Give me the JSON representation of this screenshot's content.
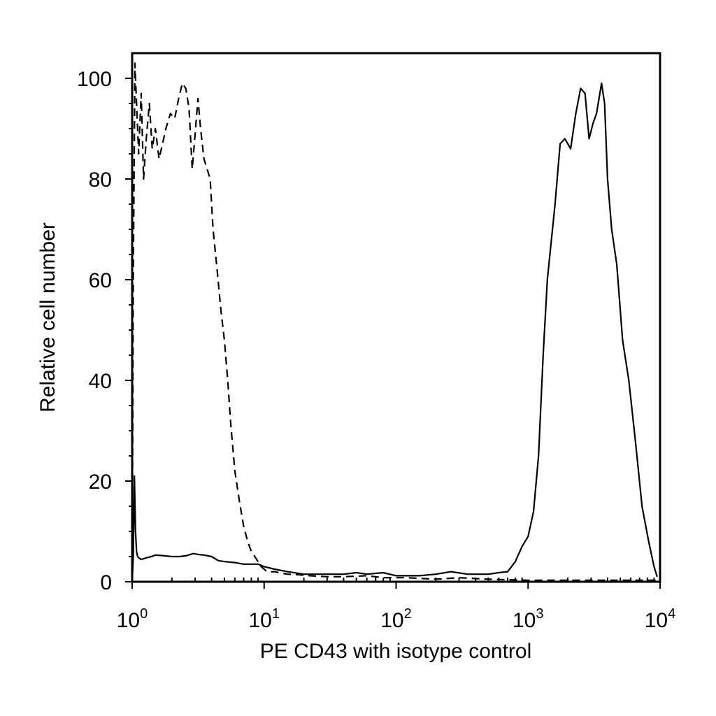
{
  "chart_data": {
    "type": "line",
    "title": "",
    "xlabel": "PE CD43 with isotype control",
    "ylabel": "Relative cell number",
    "xscale": "log",
    "xlim": [
      1,
      10000
    ],
    "ylim": [
      0,
      105
    ],
    "x_ticks": [
      {
        "base": "10",
        "exp": "0",
        "value": 1
      },
      {
        "base": "10",
        "exp": "1",
        "value": 10
      },
      {
        "base": "10",
        "exp": "2",
        "value": 100
      },
      {
        "base": "10",
        "exp": "3",
        "value": 1000
      },
      {
        "base": "10",
        "exp": "4",
        "value": 10000
      }
    ],
    "y_ticks": [
      {
        "label": "0",
        "value": 0
      },
      {
        "label": "20",
        "value": 20
      },
      {
        "label": "40",
        "value": 40
      },
      {
        "label": "60",
        "value": 60
      },
      {
        "label": "80",
        "value": 80
      },
      {
        "label": "100",
        "value": 100
      }
    ],
    "grid": false,
    "legend": "none",
    "series": [
      {
        "style": "dashed",
        "color": "#000000",
        "x": [
          1.0,
          1.02,
          1.05,
          1.08,
          1.12,
          1.17,
          1.22,
          1.28,
          1.35,
          1.42,
          1.5,
          1.6,
          1.7,
          1.8,
          1.95,
          2.1,
          2.25,
          2.4,
          2.55,
          2.7,
          2.85,
          3.0,
          3.15,
          3.3,
          3.5,
          3.7,
          3.9,
          4.1,
          4.4,
          4.7,
          5.0,
          5.3,
          5.6,
          6.0,
          6.5,
          7.0,
          7.5,
          8.0,
          8.5,
          9.0,
          9.5,
          10.0,
          10.5,
          11.0,
          12.0,
          13.0,
          15.0,
          18.0,
          22.0,
          30.0,
          40.0,
          60.0,
          80.0,
          120.0,
          200.0,
          300.0,
          500.0,
          1000.0,
          2000.0,
          4000.0,
          7000.0,
          9500.0
        ],
        "y": [
          0,
          60,
          103,
          95,
          85,
          97,
          80,
          88,
          95,
          86,
          90,
          84,
          87,
          90,
          93,
          92,
          96,
          99,
          98,
          94,
          82,
          89,
          96,
          90,
          84,
          82,
          80,
          70,
          62,
          54,
          48,
          40,
          31,
          22,
          16,
          11,
          8,
          6,
          5,
          4,
          3,
          2.5,
          2,
          2,
          2,
          1.8,
          1.5,
          1.4,
          1.2,
          1,
          1,
          1.2,
          0.8,
          0.8,
          0.5,
          0.8,
          0.5,
          0.3,
          0.3,
          0.3,
          0.3,
          0.3
        ]
      },
      {
        "style": "solid",
        "color": "#000000",
        "x": [
          1.0,
          1.02,
          1.04,
          1.06,
          1.08,
          1.1,
          1.15,
          1.2,
          1.3,
          1.4,
          1.5,
          1.7,
          2.0,
          2.3,
          2.6,
          2.9,
          3.2,
          3.5,
          4.0,
          4.5,
          5.0,
          6.0,
          7.0,
          8.0,
          9.0,
          10.0,
          12.0,
          15.0,
          20.0,
          30.0,
          40.0,
          50.0,
          60.0,
          80.0,
          100.0,
          150.0,
          200.0,
          260.0,
          350.0,
          500.0,
          600.0,
          700.0,
          800.0,
          900.0,
          1000.0,
          1100.0,
          1200.0,
          1300.0,
          1400.0,
          1600.0,
          1750.0,
          1900.0,
          2100.0,
          2300.0,
          2500.0,
          2700.0,
          2900.0,
          3100.0,
          3300.0,
          3600.0,
          3800.0,
          4000.0,
          4300.0,
          4700.0,
          5200.0,
          5800.0,
          6500.0,
          7300.0,
          8200.0,
          9000.0,
          9500.0
        ],
        "y": [
          0,
          5,
          21,
          10,
          6,
          5,
          4.5,
          4.5,
          4.8,
          5,
          5.3,
          5.2,
          5,
          5,
          5.2,
          5.6,
          5.4,
          5.3,
          5,
          4.2,
          4,
          3.8,
          3.5,
          3.5,
          3.5,
          3,
          2.5,
          2,
          1.5,
          1.5,
          1.5,
          1.8,
          1.5,
          1.8,
          1.2,
          1.2,
          1.5,
          2,
          1.5,
          1.5,
          1.8,
          2,
          4,
          7,
          9,
          14,
          25,
          45,
          60,
          75,
          87,
          88,
          86,
          93,
          98,
          97,
          88,
          91,
          93,
          99,
          95,
          80,
          70,
          63,
          48,
          40,
          28,
          15,
          8,
          3,
          1
        ]
      }
    ]
  }
}
